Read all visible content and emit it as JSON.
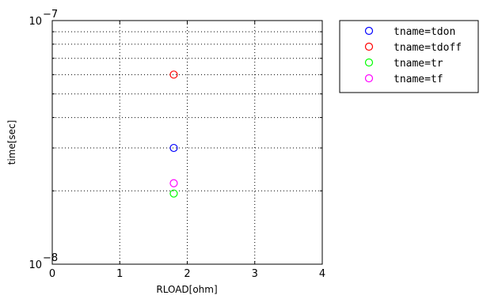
{
  "chart_data": {
    "type": "scatter",
    "xlabel": "RLOAD[ohm]",
    "ylabel": "time[sec]",
    "xlim": [
      0,
      4
    ],
    "ylim": [
      1e-08,
      1e-07
    ],
    "yscale": "log",
    "grid": true,
    "x_ticks": [
      "0",
      "1",
      "2",
      "3",
      "4"
    ],
    "y_ticks": [
      {
        "base": "10",
        "exp": "−8"
      },
      {
        "base": "10",
        "exp": "−7"
      }
    ],
    "legend_position": "outside-right-top",
    "series": [
      {
        "name": "tname=tdon",
        "color": "#0000ff",
        "x": [
          1.8
        ],
        "y": [
          3e-08
        ]
      },
      {
        "name": "tname=tdoff",
        "color": "#ff0000",
        "x": [
          1.8
        ],
        "y": [
          6e-08
        ]
      },
      {
        "name": "tname=tr",
        "color": "#00ff00",
        "x": [
          1.8
        ],
        "y": [
          1.95e-08
        ]
      },
      {
        "name": "tname=tf",
        "color": "#ff00ff",
        "x": [
          1.8
        ],
        "y": [
          2.15e-08
        ]
      }
    ]
  }
}
